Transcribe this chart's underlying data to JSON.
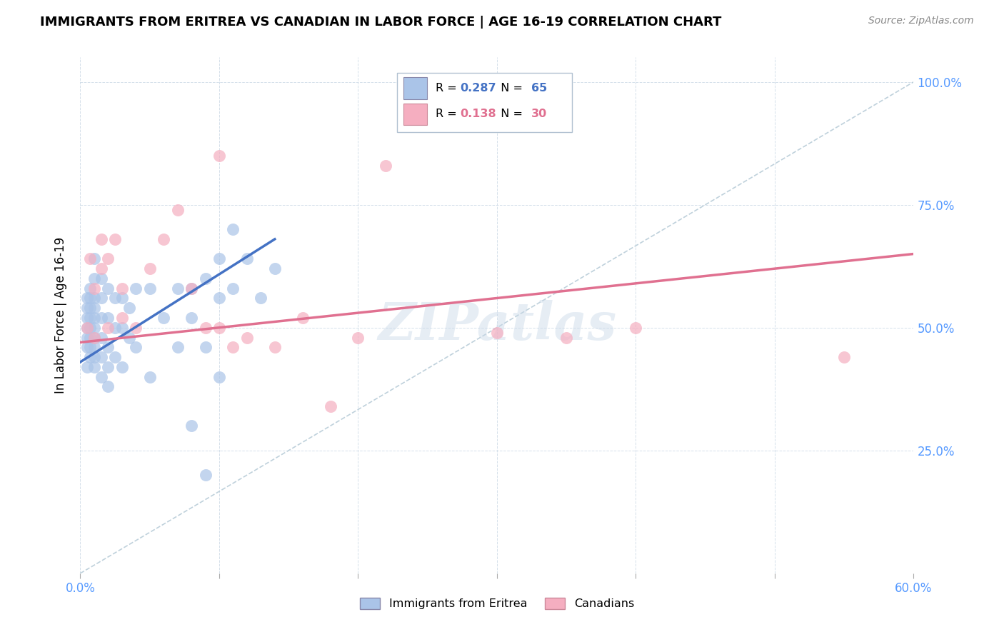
{
  "title": "IMMIGRANTS FROM ERITREA VS CANADIAN IN LABOR FORCE | AGE 16-19 CORRELATION CHART",
  "source": "Source: ZipAtlas.com",
  "ylabel": "In Labor Force | Age 16-19",
  "xlim": [
    0.0,
    0.6
  ],
  "ylim": [
    0.0,
    1.05
  ],
  "xtick_positions": [
    0.0,
    0.1,
    0.2,
    0.3,
    0.4,
    0.5,
    0.6
  ],
  "xticklabels": [
    "0.0%",
    "",
    "",
    "",
    "",
    "",
    "60.0%"
  ],
  "ytick_positions": [
    0.0,
    0.25,
    0.5,
    0.75,
    1.0
  ],
  "yticklabels": [
    "",
    "25.0%",
    "50.0%",
    "75.0%",
    "100.0%"
  ],
  "blue_R": 0.287,
  "blue_N": 65,
  "pink_R": 0.138,
  "pink_N": 30,
  "blue_dot_color": "#aac4e8",
  "pink_dot_color": "#f5aec0",
  "blue_line_color": "#4472c4",
  "pink_line_color": "#e07090",
  "diag_line_color": "#b8ccd8",
  "watermark": "ZIPatlas",
  "blue_scatter_x": [
    0.005,
    0.005,
    0.005,
    0.005,
    0.005,
    0.005,
    0.005,
    0.007,
    0.007,
    0.007,
    0.007,
    0.007,
    0.007,
    0.007,
    0.007,
    0.01,
    0.01,
    0.01,
    0.01,
    0.01,
    0.01,
    0.01,
    0.01,
    0.01,
    0.01,
    0.015,
    0.015,
    0.015,
    0.015,
    0.015,
    0.015,
    0.02,
    0.02,
    0.02,
    0.02,
    0.02,
    0.025,
    0.025,
    0.025,
    0.03,
    0.03,
    0.03,
    0.035,
    0.035,
    0.04,
    0.04,
    0.05,
    0.05,
    0.06,
    0.07,
    0.07,
    0.08,
    0.08,
    0.08,
    0.09,
    0.09,
    0.1,
    0.1,
    0.1,
    0.11,
    0.12,
    0.13,
    0.14,
    0.11,
    0.09
  ],
  "blue_scatter_y": [
    0.46,
    0.48,
    0.5,
    0.52,
    0.54,
    0.56,
    0.42,
    0.44,
    0.46,
    0.48,
    0.5,
    0.52,
    0.54,
    0.56,
    0.58,
    0.42,
    0.44,
    0.46,
    0.48,
    0.5,
    0.52,
    0.54,
    0.56,
    0.6,
    0.64,
    0.4,
    0.44,
    0.48,
    0.52,
    0.56,
    0.6,
    0.38,
    0.42,
    0.46,
    0.52,
    0.58,
    0.44,
    0.5,
    0.56,
    0.42,
    0.5,
    0.56,
    0.48,
    0.54,
    0.46,
    0.58,
    0.4,
    0.58,
    0.52,
    0.46,
    0.58,
    0.3,
    0.52,
    0.58,
    0.46,
    0.6,
    0.4,
    0.56,
    0.64,
    0.58,
    0.64,
    0.56,
    0.62,
    0.7,
    0.2
  ],
  "pink_scatter_x": [
    0.005,
    0.007,
    0.01,
    0.01,
    0.015,
    0.015,
    0.02,
    0.02,
    0.025,
    0.03,
    0.03,
    0.04,
    0.05,
    0.06,
    0.07,
    0.08,
    0.09,
    0.1,
    0.11,
    0.12,
    0.14,
    0.16,
    0.2,
    0.22,
    0.3,
    0.35,
    0.4,
    0.55,
    0.1,
    0.18
  ],
  "pink_scatter_y": [
    0.5,
    0.64,
    0.48,
    0.58,
    0.62,
    0.68,
    0.5,
    0.64,
    0.68,
    0.52,
    0.58,
    0.5,
    0.62,
    0.68,
    0.74,
    0.58,
    0.5,
    0.5,
    0.46,
    0.48,
    0.46,
    0.52,
    0.48,
    0.83,
    0.49,
    0.48,
    0.5,
    0.44,
    0.85,
    0.34
  ],
  "blue_line_x": [
    0.0,
    0.14
  ],
  "blue_line_y": [
    0.43,
    0.68
  ],
  "pink_line_x": [
    0.0,
    0.6
  ],
  "pink_line_y": [
    0.47,
    0.65
  ],
  "diag_line_x": [
    0.0,
    0.6
  ],
  "diag_line_y": [
    0.0,
    1.0
  ],
  "legend_box_color": "#ffffff",
  "legend_box_edge": "#cccccc",
  "tick_color": "#5599ff",
  "title_fontsize": 13,
  "source_fontsize": 10,
  "axis_label_fontsize": 12,
  "tick_fontsize": 12,
  "legend_fontsize": 12
}
